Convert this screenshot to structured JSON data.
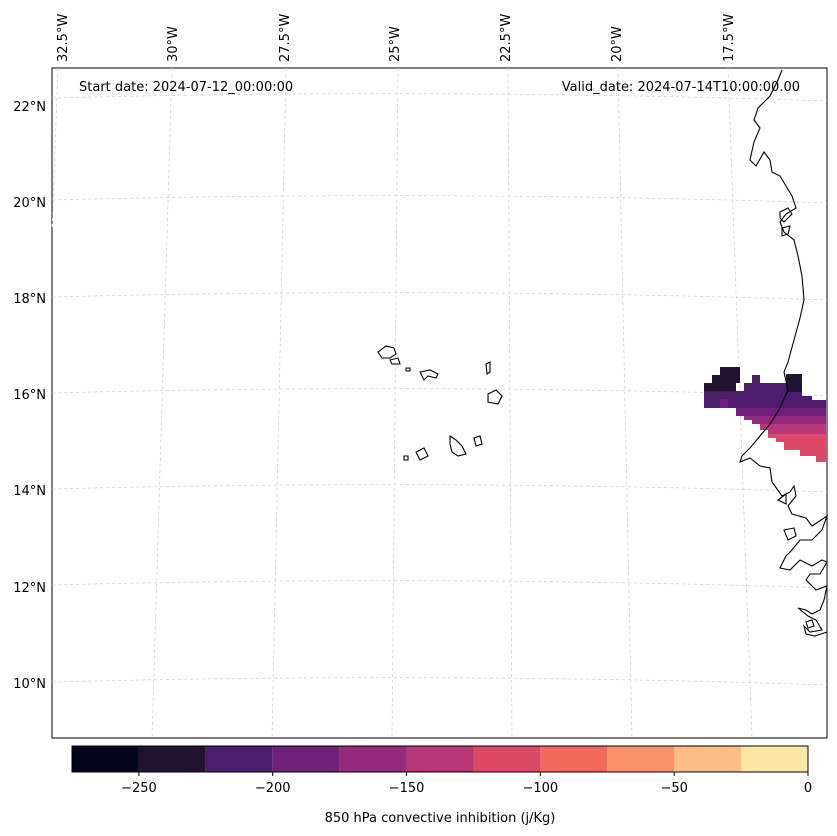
{
  "map": {
    "start_date": "Start date: 2024-07-12_00:00:00",
    "valid_date": "Valid_date: 2024-07-14T10:00:00.00",
    "lon_labels": [
      "32.5°W",
      "30°W",
      "27.5°W",
      "25°W",
      "22.5°W",
      "20°W",
      "17.5°W"
    ],
    "lat_labels": [
      "22°N",
      "20°N",
      "18°N",
      "16°N",
      "14°N",
      "12°N",
      "10°N"
    ],
    "lon_values": [
      -32.5,
      -30,
      -27.5,
      -25,
      -22.5,
      -20,
      -17.5
    ],
    "lat_values": [
      22,
      20,
      18,
      16,
      14,
      12,
      10
    ]
  },
  "colorbar": {
    "title": "850 hPa convective inhibition (j/Kg)",
    "tick_labels": [
      "−250",
      "−200",
      "−150",
      "−100",
      "−50",
      "0"
    ],
    "tick_values": [
      -250,
      -200,
      -150,
      -100,
      -50,
      0
    ],
    "range": [
      -275,
      0
    ],
    "bins": [
      -275,
      -250,
      -225,
      -200,
      -175,
      -150,
      -125,
      -100,
      -75,
      -50,
      -25,
      0
    ],
    "colors": [
      "#03051a",
      "#221331",
      "#4c1d6f",
      "#701f7b",
      "#932a7e",
      "#b73779",
      "#de4968",
      "#f3675c",
      "#fb9169",
      "#febc85",
      "#fde6a4"
    ]
  }
}
